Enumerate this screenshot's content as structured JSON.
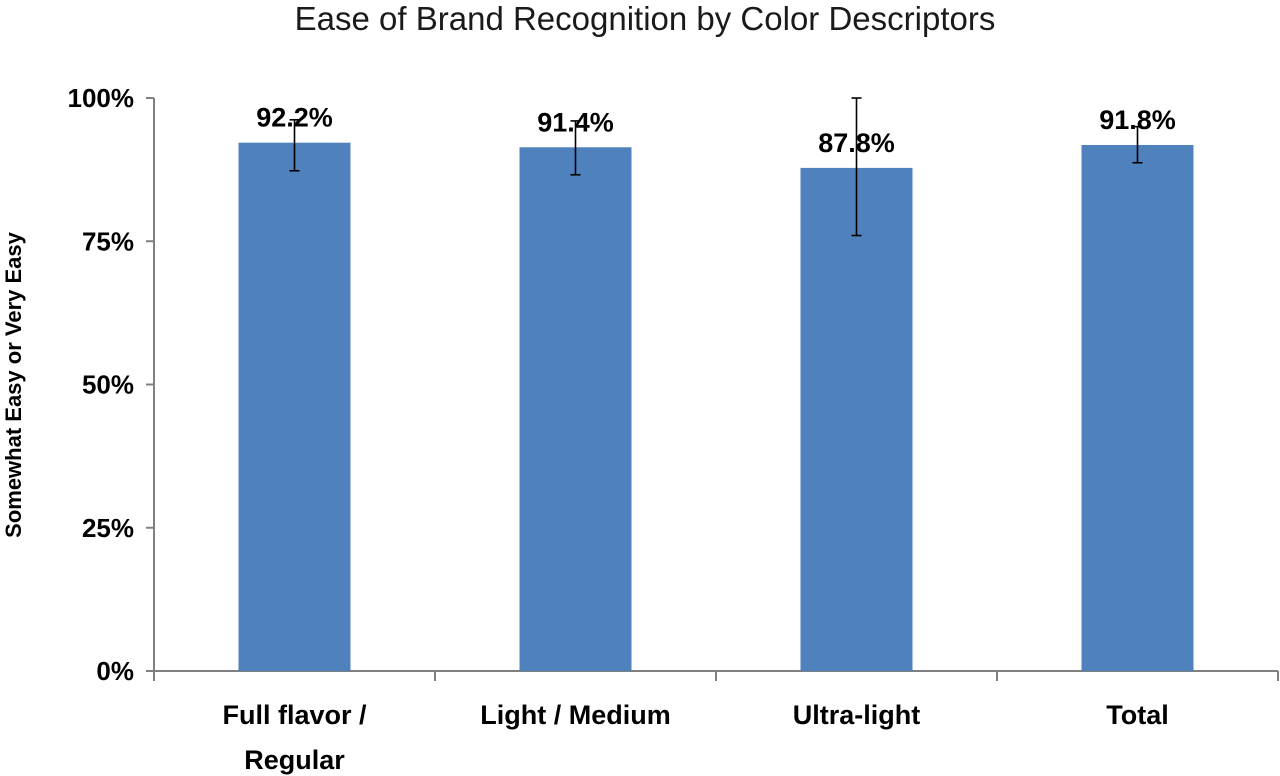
{
  "chart_data": {
    "type": "bar",
    "title": "Ease of Brand Recognition by Color Descriptors",
    "xlabel": "",
    "ylabel": "Somewhat Easy or Very Easy",
    "categories": [
      "Full flavor / Regular",
      "Light / Medium",
      "Ultra-light",
      "Total"
    ],
    "category_lines": [
      [
        "Full flavor /",
        "Regular"
      ],
      [
        "Light / Medium"
      ],
      [
        "Ultra-light"
      ],
      [
        "Total"
      ]
    ],
    "series": [
      {
        "values": [
          92.2,
          91.4,
          87.8,
          91.8
        ],
        "data_labels": [
          "92.2%",
          "91.4%",
          "87.8%",
          "91.8%"
        ],
        "error_low": [
          87.3,
          86.6,
          76.0,
          88.7
        ],
        "error_high": [
          96.2,
          96.0,
          100.0,
          95.0
        ]
      }
    ],
    "ylim": [
      0,
      100
    ],
    "yticks": [
      0,
      25,
      50,
      75,
      100
    ],
    "ytick_labels": [
      "0%",
      "25%",
      "50%",
      "75%",
      "100%"
    ],
    "grid": false,
    "legend": "none",
    "bar_color": "#4F81BD",
    "axis_color": "#808080"
  }
}
